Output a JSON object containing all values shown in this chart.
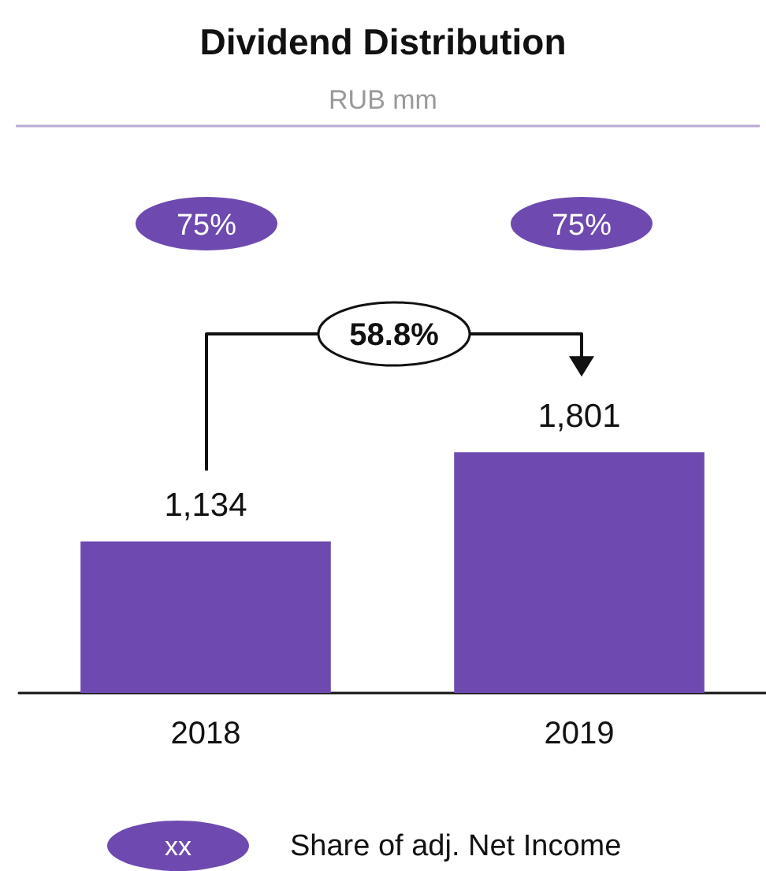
{
  "chart_data": {
    "type": "bar",
    "title": "Dividend Distribution",
    "subtitle": "RUB mm",
    "categories": [
      "2018",
      "2019"
    ],
    "values": [
      1134,
      1801
    ],
    "value_labels": [
      "1,134",
      "1,801"
    ],
    "color": "#6e4ab0",
    "annotations": [
      "75%",
      "75%",
      "58.8%",
      "xx",
      "Share of adj. Net Income"
    ]
  }
}
